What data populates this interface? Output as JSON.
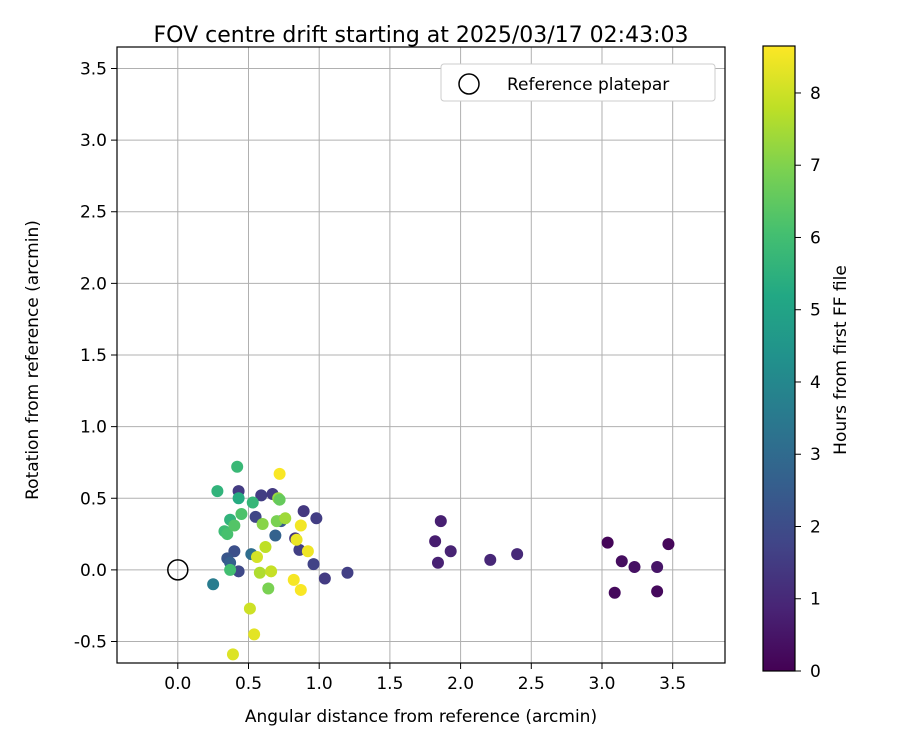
{
  "chart_data": {
    "type": "scatter",
    "title": "FOV centre drift starting at 2025/03/17 02:43:03",
    "xlabel": "Angular distance from reference (arcmin)",
    "ylabel": "Rotation from reference (arcmin)",
    "xlim": [
      -0.43,
      3.87
    ],
    "ylim": [
      -0.65,
      3.65
    ],
    "xticks": [
      "0.0",
      "0.5",
      "1.0",
      "1.5",
      "2.0",
      "2.5",
      "3.0",
      "3.5"
    ],
    "yticks": [
      "-0.5",
      "0.0",
      "0.5",
      "1.0",
      "1.5",
      "2.0",
      "2.5",
      "3.0",
      "3.5"
    ],
    "grid": true,
    "legend": {
      "placement": "top-right",
      "label": "Reference platepar"
    },
    "reference": {
      "x": 0.0,
      "y": 0.0
    },
    "colorbar": {
      "label": "Hours from first FF file",
      "colormap": "viridis",
      "range": [
        0,
        8.65
      ],
      "ticks": [
        "0",
        "1",
        "2",
        "3",
        "4",
        "5",
        "6",
        "7",
        "8"
      ]
    },
    "points": [
      {
        "x": 3.04,
        "y": 0.19,
        "c": 0.1
      },
      {
        "x": 3.09,
        "y": -0.16,
        "c": 0.2
      },
      {
        "x": 3.14,
        "y": 0.06,
        "c": 0.3
      },
      {
        "x": 3.23,
        "y": 0.02,
        "c": 0.4
      },
      {
        "x": 3.39,
        "y": 0.02,
        "c": 0.5
      },
      {
        "x": 3.39,
        "y": -0.15,
        "c": 0.2
      },
      {
        "x": 3.47,
        "y": 0.18,
        "c": 0.15
      },
      {
        "x": 1.82,
        "y": 0.2,
        "c": 0.7
      },
      {
        "x": 1.84,
        "y": 0.05,
        "c": 0.8
      },
      {
        "x": 1.86,
        "y": 0.34,
        "c": 0.75
      },
      {
        "x": 1.93,
        "y": 0.13,
        "c": 0.85
      },
      {
        "x": 2.21,
        "y": 0.07,
        "c": 0.95
      },
      {
        "x": 2.4,
        "y": 0.11,
        "c": 1.0
      },
      {
        "x": 1.2,
        "y": -0.02,
        "c": 1.6
      },
      {
        "x": 1.04,
        "y": -0.06,
        "c": 1.5
      },
      {
        "x": 0.98,
        "y": 0.36,
        "c": 1.55
      },
      {
        "x": 0.96,
        "y": 0.04,
        "c": 1.7
      },
      {
        "x": 0.89,
        "y": 0.41,
        "c": 1.4
      },
      {
        "x": 0.86,
        "y": 0.14,
        "c": 1.6
      },
      {
        "x": 0.83,
        "y": 0.22,
        "c": 1.3
      },
      {
        "x": 0.67,
        "y": 0.53,
        "c": 1.45
      },
      {
        "x": 0.59,
        "y": 0.52,
        "c": 1.55
      },
      {
        "x": 0.55,
        "y": 0.37,
        "c": 1.8
      },
      {
        "x": 0.43,
        "y": 0.55,
        "c": 1.5
      },
      {
        "x": 0.43,
        "y": -0.01,
        "c": 1.9
      },
      {
        "x": 0.4,
        "y": 0.13,
        "c": 2.1
      },
      {
        "x": 0.35,
        "y": 0.08,
        "c": 2.3
      },
      {
        "x": 0.37,
        "y": 0.05,
        "c": 2.6
      },
      {
        "x": 0.69,
        "y": 0.24,
        "c": 2.7
      },
      {
        "x": 0.73,
        "y": 0.34,
        "c": 2.4
      },
      {
        "x": 0.52,
        "y": 0.11,
        "c": 3.1
      },
      {
        "x": 0.25,
        "y": -0.1,
        "c": 3.6
      },
      {
        "x": 0.28,
        "y": 0.55,
        "c": 5.6
      },
      {
        "x": 0.42,
        "y": 0.72,
        "c": 5.8
      },
      {
        "x": 0.33,
        "y": 0.27,
        "c": 5.9
      },
      {
        "x": 0.37,
        "y": 0.35,
        "c": 5.6
      },
      {
        "x": 0.43,
        "y": 0.5,
        "c": 5.3
      },
      {
        "x": 0.45,
        "y": 0.39,
        "c": 6.2
      },
      {
        "x": 0.53,
        "y": 0.47,
        "c": 5.7
      },
      {
        "x": 0.37,
        "y": 0.0,
        "c": 6.0
      },
      {
        "x": 0.35,
        "y": 0.25,
        "c": 6.1
      },
      {
        "x": 0.4,
        "y": 0.31,
        "c": 6.3
      },
      {
        "x": 0.6,
        "y": 0.32,
        "c": 7.1
      },
      {
        "x": 0.7,
        "y": 0.34,
        "c": 6.9
      },
      {
        "x": 0.71,
        "y": 0.5,
        "c": 7.3
      },
      {
        "x": 0.72,
        "y": 0.49,
        "c": 6.6
      },
      {
        "x": 0.76,
        "y": 0.36,
        "c": 7.4
      },
      {
        "x": 0.64,
        "y": -0.13,
        "c": 6.9
      },
      {
        "x": 0.62,
        "y": 0.16,
        "c": 7.8
      },
      {
        "x": 0.58,
        "y": -0.02,
        "c": 7.6
      },
      {
        "x": 0.66,
        "y": -0.01,
        "c": 7.9
      },
      {
        "x": 0.56,
        "y": 0.09,
        "c": 8.1
      },
      {
        "x": 0.51,
        "y": -0.27,
        "c": 8.0
      },
      {
        "x": 0.54,
        "y": -0.45,
        "c": 8.3
      },
      {
        "x": 0.39,
        "y": -0.59,
        "c": 8.2
      },
      {
        "x": 0.72,
        "y": 0.67,
        "c": 8.6
      },
      {
        "x": 0.87,
        "y": 0.31,
        "c": 8.5
      },
      {
        "x": 0.84,
        "y": 0.21,
        "c": 8.4
      },
      {
        "x": 0.92,
        "y": 0.13,
        "c": 8.45
      },
      {
        "x": 0.82,
        "y": -0.07,
        "c": 8.55
      },
      {
        "x": 0.87,
        "y": -0.14,
        "c": 8.6
      }
    ]
  }
}
